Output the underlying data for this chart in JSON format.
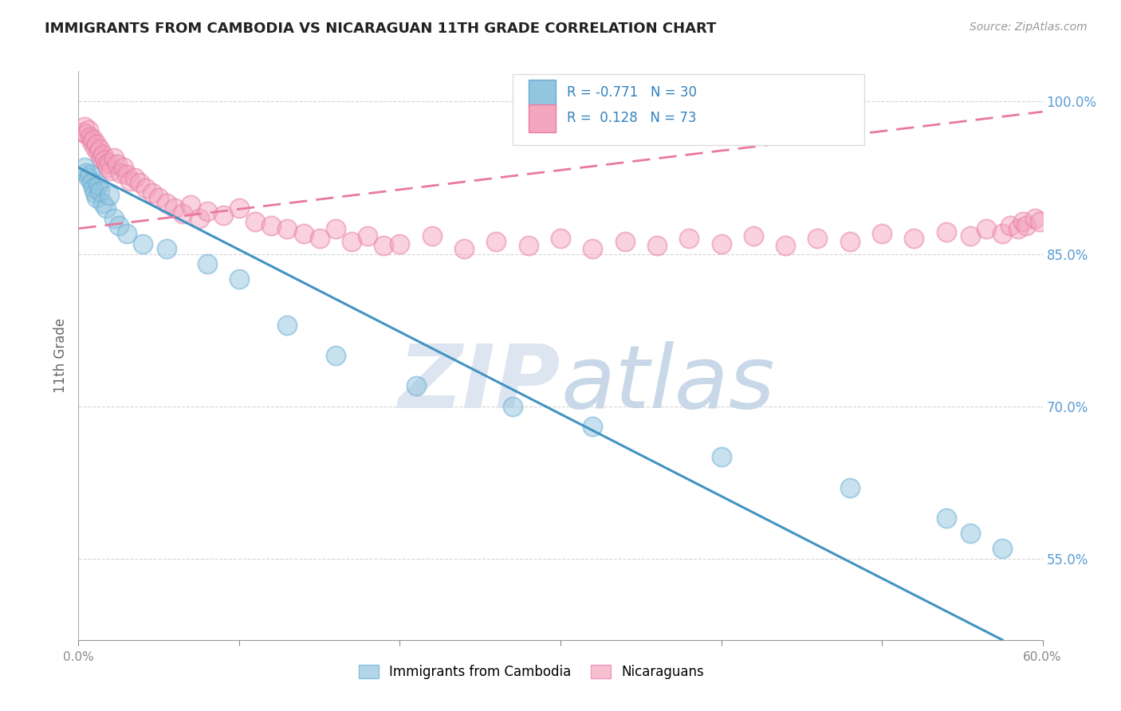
{
  "title": "IMMIGRANTS FROM CAMBODIA VS NICARAGUAN 11TH GRADE CORRELATION CHART",
  "source_text": "Source: ZipAtlas.com",
  "ylabel": "11th Grade",
  "legend_labels": [
    "Immigrants from Cambodia",
    "Nicaraguans"
  ],
  "r_cambodia": -0.771,
  "n_cambodia": 30,
  "r_nicaragua": 0.128,
  "n_nicaragua": 73,
  "xlim": [
    0.0,
    0.6
  ],
  "ylim": [
    0.47,
    1.03
  ],
  "right_yticks": [
    0.55,
    0.7,
    0.85,
    1.0
  ],
  "color_cambodia": "#92c5de",
  "color_nicaragua": "#f4a6be",
  "color_cambodia_edge": "#6baed6",
  "color_nicaragua_edge": "#e87da8",
  "color_blue_line": "#4393c3",
  "color_pink_line": "#e8799e",
  "background_color": "#ffffff",
  "watermark_color": "#dde5f0",
  "scatter_cambodia_x": [
    0.004,
    0.005,
    0.006,
    0.007,
    0.008,
    0.009,
    0.01,
    0.011,
    0.012,
    0.013,
    0.015,
    0.017,
    0.019,
    0.022,
    0.025,
    0.03,
    0.04,
    0.055,
    0.08,
    0.1,
    0.13,
    0.16,
    0.21,
    0.27,
    0.32,
    0.4,
    0.48,
    0.54,
    0.555,
    0.575
  ],
  "scatter_cambodia_y": [
    0.935,
    0.93,
    0.925,
    0.928,
    0.92,
    0.915,
    0.91,
    0.905,
    0.918,
    0.912,
    0.9,
    0.895,
    0.908,
    0.885,
    0.878,
    0.87,
    0.86,
    0.855,
    0.84,
    0.825,
    0.78,
    0.75,
    0.72,
    0.7,
    0.68,
    0.65,
    0.62,
    0.59,
    0.575,
    0.56
  ],
  "scatter_nicaragua_x": [
    0.003,
    0.004,
    0.005,
    0.006,
    0.007,
    0.008,
    0.009,
    0.01,
    0.011,
    0.012,
    0.013,
    0.014,
    0.015,
    0.016,
    0.017,
    0.018,
    0.019,
    0.02,
    0.022,
    0.024,
    0.026,
    0.028,
    0.03,
    0.032,
    0.035,
    0.038,
    0.042,
    0.046,
    0.05,
    0.055,
    0.06,
    0.065,
    0.07,
    0.075,
    0.08,
    0.09,
    0.1,
    0.11,
    0.12,
    0.13,
    0.14,
    0.15,
    0.16,
    0.17,
    0.18,
    0.19,
    0.2,
    0.22,
    0.24,
    0.26,
    0.28,
    0.3,
    0.32,
    0.34,
    0.36,
    0.38,
    0.4,
    0.42,
    0.44,
    0.46,
    0.48,
    0.5,
    0.52,
    0.54,
    0.555,
    0.565,
    0.575,
    0.58,
    0.585,
    0.588,
    0.59,
    0.595,
    0.598
  ],
  "scatter_nicaragua_y": [
    0.97,
    0.975,
    0.968,
    0.972,
    0.965,
    0.96,
    0.963,
    0.955,
    0.958,
    0.95,
    0.953,
    0.945,
    0.948,
    0.942,
    0.938,
    0.935,
    0.94,
    0.932,
    0.945,
    0.938,
    0.93,
    0.935,
    0.928,
    0.922,
    0.925,
    0.92,
    0.915,
    0.91,
    0.905,
    0.9,
    0.895,
    0.89,
    0.898,
    0.885,
    0.892,
    0.888,
    0.895,
    0.882,
    0.878,
    0.875,
    0.87,
    0.865,
    0.875,
    0.862,
    0.868,
    0.858,
    0.86,
    0.868,
    0.855,
    0.862,
    0.858,
    0.865,
    0.855,
    0.862,
    0.858,
    0.865,
    0.86,
    0.868,
    0.858,
    0.865,
    0.862,
    0.87,
    0.865,
    0.872,
    0.868,
    0.875,
    0.87,
    0.878,
    0.875,
    0.882,
    0.878,
    0.885,
    0.882
  ],
  "blue_line_x0": 0.0,
  "blue_line_y0": 0.935,
  "blue_line_x1": 0.575,
  "blue_line_y1": 0.47,
  "pink_line_x0": 0.0,
  "pink_line_y0": 0.875,
  "pink_line_x1": 0.6,
  "pink_line_y1": 0.99
}
